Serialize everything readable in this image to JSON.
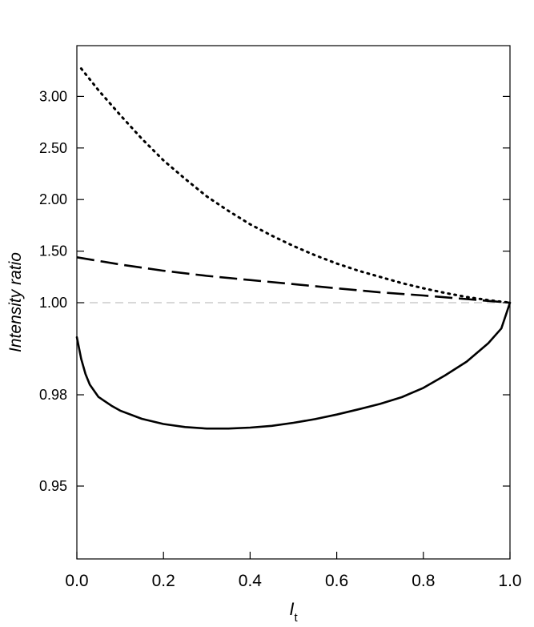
{
  "chart_data": {
    "type": "line",
    "title": "",
    "xlabel": "I",
    "xlabel_subscript": "t",
    "ylabel": "Intensity ratio",
    "xlim": [
      0,
      1
    ],
    "x_ticks": [
      0,
      0.2,
      0.4,
      0.6,
      0.8,
      1.0
    ],
    "x_tick_labels": [
      "0.0",
      "0.2",
      "0.4",
      "0.6",
      "0.8",
      "1.0"
    ],
    "y_ticks": [
      0.95,
      0.98,
      1.0,
      1.5,
      2.0,
      2.5,
      3.0
    ],
    "y_tick_labels": [
      "0.95",
      "0.98",
      "1.00",
      "1.50",
      "2.00",
      "2.50",
      "3.00"
    ],
    "y_scale": "broken (expanded below 1.00)",
    "grid": false,
    "reference_line": {
      "y": 1.0,
      "style": "dashed",
      "color": "#b0b0b0"
    },
    "series": [
      {
        "style": "dotted",
        "color": "#000000",
        "x": [
          0.01,
          0.05,
          0.1,
          0.15,
          0.2,
          0.25,
          0.3,
          0.35,
          0.4,
          0.45,
          0.5,
          0.55,
          0.6,
          0.65,
          0.7,
          0.75,
          0.8,
          0.85,
          0.9,
          0.95,
          1.0
        ],
        "y": [
          3.27,
          3.06,
          2.82,
          2.59,
          2.38,
          2.2,
          2.03,
          1.89,
          1.76,
          1.65,
          1.55,
          1.46,
          1.38,
          1.31,
          1.25,
          1.19,
          1.14,
          1.095,
          1.055,
          1.025,
          1.0
        ]
      },
      {
        "style": "dashed",
        "color": "#000000",
        "x": [
          0.0,
          0.1,
          0.2,
          0.3,
          0.4,
          0.5,
          0.6,
          0.7,
          0.8,
          0.9,
          1.0
        ],
        "y": [
          1.44,
          1.37,
          1.31,
          1.26,
          1.22,
          1.18,
          1.14,
          1.1,
          1.07,
          1.035,
          1.0
        ]
      },
      {
        "style": "solid",
        "color": "#000000",
        "x": [
          0.0,
          0.01,
          0.02,
          0.03,
          0.05,
          0.08,
          0.1,
          0.15,
          0.2,
          0.25,
          0.3,
          0.35,
          0.4,
          0.45,
          0.5,
          0.55,
          0.6,
          0.65,
          0.7,
          0.75,
          0.8,
          0.85,
          0.9,
          0.95,
          0.98,
          1.0
        ],
        "y": [
          0.9925,
          0.9878,
          0.9845,
          0.9822,
          0.9793,
          0.9764,
          0.9748,
          0.9721,
          0.9704,
          0.9694,
          0.9689,
          0.9689,
          0.9692,
          0.9698,
          0.9708,
          0.972,
          0.9735,
          0.9752,
          0.977,
          0.9792,
          0.9815,
          0.9842,
          0.9872,
          0.9912,
          0.9944,
          1.0
        ]
      }
    ]
  }
}
